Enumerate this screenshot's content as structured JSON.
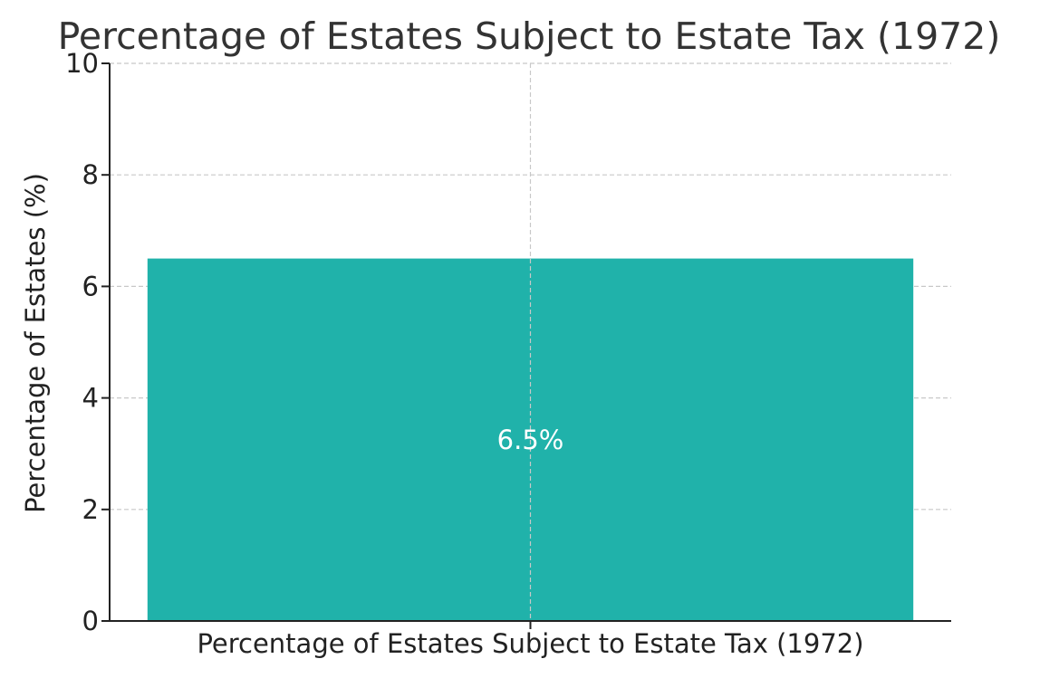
{
  "chart_data": {
    "type": "bar",
    "title": "Percentage of Estates Subject to Estate Tax (1972)",
    "xlabel": "",
    "ylabel": "Percentage of Estates (%)",
    "categories": [
      "Percentage of Estates Subject to Estate Tax (1972)"
    ],
    "values": [
      6.5
    ],
    "data_labels": [
      "6.5%"
    ],
    "ylim": [
      0,
      10
    ],
    "yticks": [
      0,
      2,
      4,
      6,
      8,
      10
    ],
    "ytick_labels": [
      "0",
      "2",
      "4",
      "6",
      "8",
      "10"
    ],
    "grid": true,
    "bar_color": "#20b2aa"
  }
}
